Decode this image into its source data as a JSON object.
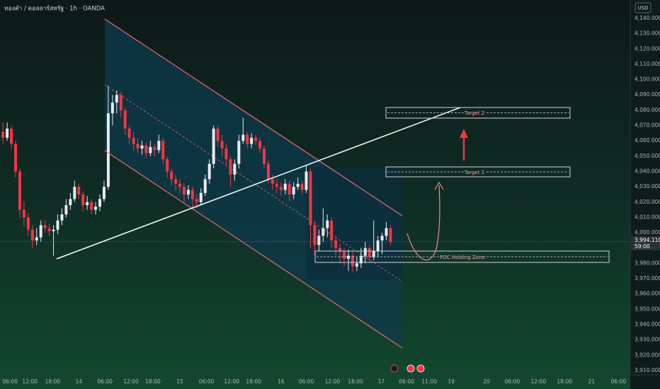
{
  "chart_data": {
    "type": "candlestick",
    "title": "ทองคำ / ดอลลาร์สหรัฐ · 1h · OANDA",
    "currency": "USD",
    "countdown": "59:00",
    "annotations": [
      "Target 2",
      "Target 1",
      "POC Holding Zone"
    ],
    "current_price": {
      "value": 3994.11,
      "label": "3,994.110"
    },
    "up_color": "#e8eaef",
    "down_color": "#f23645",
    "grid": false,
    "xlim": [
      -18.7,
      130.9
    ],
    "ylim": [
      3907.2,
      4152
    ],
    "xticks": [
      {
        "value": -16.3,
        "label": "06:00"
      },
      {
        "value": -11.6,
        "label": "12:00"
      },
      {
        "value": -6.2,
        "label": "18:00"
      },
      {
        "value": 0,
        "label": "14"
      },
      {
        "value": 6.2,
        "label": "06:00"
      },
      {
        "value": 12.4,
        "label": "12:00"
      },
      {
        "value": 17.6,
        "label": "18:00"
      },
      {
        "value": 24,
        "label": "15"
      },
      {
        "value": 30.3,
        "label": "06:00"
      },
      {
        "value": 36.3,
        "label": "12:00"
      },
      {
        "value": 41.5,
        "label": "18:00"
      },
      {
        "value": 48,
        "label": "16"
      },
      {
        "value": 54,
        "label": "06:00"
      },
      {
        "value": 60.2,
        "label": "12:00"
      },
      {
        "value": 65.7,
        "label": "18:00"
      },
      {
        "value": 71.8,
        "label": "17"
      },
      {
        "value": 77.8,
        "label": "06:00"
      },
      {
        "value": 83.2,
        "label": "11:00"
      },
      {
        "value": 88.4,
        "label": "19"
      },
      {
        "value": 96.8,
        "label": "20"
      },
      {
        "value": 102.9,
        "label": "06:00"
      },
      {
        "value": 109.1,
        "label": "12:00"
      },
      {
        "value": 115.3,
        "label": "18:00"
      },
      {
        "value": 121.7,
        "label": "21"
      },
      {
        "value": 128.1,
        "label": "06:00"
      }
    ],
    "yticks": [
      {
        "value": 4140,
        "label": "4,140.000"
      },
      {
        "value": 4130,
        "label": "4,130.000"
      },
      {
        "value": 4120,
        "label": "4,120.000"
      },
      {
        "value": 4110,
        "label": "4,110.000"
      },
      {
        "value": 4100,
        "label": "4,100.000"
      },
      {
        "value": 4090,
        "label": "4,090.000"
      },
      {
        "value": 4080,
        "label": "4,080.000"
      },
      {
        "value": 4070,
        "label": "4,070.000"
      },
      {
        "value": 4060,
        "label": "4,060.000"
      },
      {
        "value": 4050,
        "label": "4,050.000"
      },
      {
        "value": 4040,
        "label": "4,040.000"
      },
      {
        "value": 4030,
        "label": "4,030.000"
      },
      {
        "value": 4020,
        "label": "4,020.000"
      },
      {
        "value": 4010,
        "label": "4,010.000"
      },
      {
        "value": 4000,
        "label": "4,000.000"
      },
      {
        "value": 3980,
        "label": "3,980.000"
      },
      {
        "value": 3970,
        "label": "3,970.000"
      },
      {
        "value": 3960,
        "label": "3,960.000"
      },
      {
        "value": 3950,
        "label": "3,950.000"
      },
      {
        "value": 3940,
        "label": "3,940.000"
      },
      {
        "value": 3930,
        "label": "3,930.000"
      },
      {
        "value": 3920,
        "label": "3,920.000"
      },
      {
        "value": 3910,
        "label": "3,910.000"
      }
    ],
    "series": [
      {
        "x": [
          -18,
          -17,
          -16,
          -15,
          -14,
          -13,
          -12,
          -11,
          -10,
          -9,
          -8,
          -7,
          -6,
          -5,
          -4,
          -3,
          -2,
          -1,
          0,
          1,
          2,
          3,
          4,
          5,
          6,
          7,
          8,
          9,
          10,
          11,
          12,
          13,
          14,
          15,
          16,
          17,
          18,
          19,
          20,
          21,
          22,
          23,
          24,
          25,
          26,
          27,
          28,
          29,
          30,
          31,
          32,
          33,
          34,
          35,
          36,
          37,
          38,
          39,
          40,
          41,
          42,
          43,
          44,
          45,
          46,
          47,
          48,
          49,
          50,
          51,
          52,
          53,
          54,
          55,
          56,
          57,
          58,
          59,
          60,
          61,
          62,
          63,
          64,
          65,
          66,
          67,
          68,
          69,
          70,
          71,
          72,
          73,
          74
        ],
        "open": [
          4066,
          4062,
          4068,
          4058,
          4040,
          4015,
          4010,
          4002,
          3995,
          3997,
          4005,
          4003,
          4001,
          4002,
          4008,
          4012,
          4018,
          4022,
          4030,
          4025,
          4018,
          4020,
          4015,
          4017,
          4022,
          4030,
          4078,
          4085,
          4090,
          4080,
          4068,
          4062,
          4058,
          4055,
          4057,
          4052,
          4056,
          4054,
          4060,
          4048,
          4040,
          4035,
          4032,
          4030,
          4025,
          4028,
          4022,
          4020,
          4026,
          4035,
          4045,
          4068,
          4060,
          4055,
          4048,
          4038,
          4045,
          4060,
          4064,
          4058,
          4062,
          4060,
          4055,
          4045,
          4035,
          4032,
          4030,
          4028,
          4032,
          4025,
          4030,
          4032,
          4028,
          4040,
          4005,
          3992,
          3998,
          4003,
          4008,
          3995,
          3990,
          3988,
          3983,
          3985,
          3978,
          3980,
          3985,
          3990,
          3984,
          3988,
          3995,
          3998,
          4003
        ],
        "high": [
          4072,
          4072,
          4070,
          4060,
          4042,
          4020,
          4013,
          4005,
          4003,
          4008,
          4008,
          4006,
          4005,
          4012,
          4016,
          4022,
          4026,
          4034,
          4032,
          4027,
          4024,
          4022,
          4020,
          4025,
          4034,
          4096,
          4090,
          4093,
          4092,
          4082,
          4070,
          4066,
          4062,
          4060,
          4059,
          4060,
          4058,
          4064,
          4062,
          4050,
          4042,
          4038,
          4035,
          4032,
          4031,
          4030,
          4025,
          4029,
          4038,
          4048,
          4070,
          4070,
          4064,
          4058,
          4050,
          4048,
          4064,
          4075,
          4066,
          4065,
          4064,
          4062,
          4057,
          4047,
          4038,
          4035,
          4033,
          4035,
          4034,
          4033,
          4036,
          4034,
          4044,
          4042,
          4008,
          4002,
          4016,
          4012,
          4010,
          3998,
          3993,
          3990,
          3989,
          3988,
          3984,
          3990,
          3994,
          3992,
          4008,
          3998,
          4000,
          4007,
          4005
        ],
        "low": [
          4058,
          4060,
          4055,
          4036,
          4010,
          4004,
          3998,
          3990,
          3992,
          3994,
          4000,
          3998,
          3985,
          3999,
          4005,
          4010,
          4015,
          4020,
          4022,
          4014,
          4015,
          4012,
          4012,
          4014,
          4020,
          4028,
          4070,
          4078,
          4075,
          4064,
          4058,
          4054,
          4052,
          4051,
          4049,
          4050,
          4050,
          4052,
          4045,
          4036,
          4031,
          4028,
          4026,
          4020,
          4022,
          4016,
          4016,
          4018,
          4024,
          4032,
          4042,
          4056,
          4050,
          4044,
          4030,
          4034,
          4042,
          4058,
          4055,
          4055,
          4057,
          4052,
          4042,
          4032,
          4028,
          4026,
          4024,
          4025,
          4021,
          4022,
          4028,
          4025,
          4026,
          3990,
          3985,
          3988,
          3994,
          3997,
          3990,
          3985,
          3980,
          3978,
          3975,
          3974,
          3975,
          3977,
          3980,
          3980,
          3982,
          3984,
          3986,
          3995,
          3992
        ],
        "close": [
          4062,
          4068,
          4058,
          4040,
          4015,
          4010,
          4002,
          3995,
          3997,
          4005,
          4003,
          4001,
          4002,
          4008,
          4012,
          4018,
          4022,
          4030,
          4025,
          4018,
          4020,
          4015,
          4017,
          4022,
          4030,
          4078,
          4085,
          4090,
          4080,
          4068,
          4062,
          4058,
          4055,
          4057,
          4052,
          4056,
          4054,
          4060,
          4048,
          4040,
          4035,
          4032,
          4030,
          4025,
          4028,
          4022,
          4020,
          4026,
          4035,
          4045,
          4068,
          4060,
          4055,
          4048,
          4038,
          4045,
          4060,
          4064,
          4058,
          4062,
          4060,
          4055,
          4045,
          4035,
          4032,
          4030,
          4028,
          4032,
          4025,
          4030,
          4032,
          4028,
          4040,
          4005,
          3992,
          3998,
          4003,
          4008,
          3995,
          3990,
          3988,
          3983,
          3985,
          3978,
          3980,
          3985,
          3990,
          3984,
          3988,
          3995,
          3998,
          4003,
          3994.11
        ]
      }
    ]
  }
}
